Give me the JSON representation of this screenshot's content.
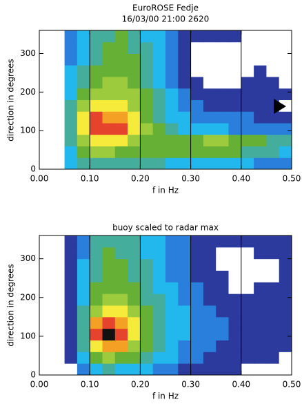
{
  "chart_data": [
    {
      "type": "contour",
      "title": "EuroROSE Fedje",
      "subtitle": "16/03/00 21:00 2620",
      "xlabel": "f in Hz",
      "ylabel": "direction in degrees",
      "xlim": [
        0,
        0.5
      ],
      "ylim": [
        0,
        360
      ],
      "xticks": [
        {
          "value": 0,
          "label": "0.00"
        },
        {
          "value": 0.1,
          "label": "0.10"
        },
        {
          "value": 0.2,
          "label": "0.20"
        },
        {
          "value": 0.3,
          "label": "0.30"
        },
        {
          "value": 0.4,
          "label": "0.40"
        },
        {
          "value": 0.5,
          "label": "0.50"
        }
      ],
      "yticks": [
        0,
        100,
        200,
        300
      ],
      "vlines": [
        0.1,
        0.2,
        0.3,
        0.4
      ],
      "colors": [
        "#ffffff",
        "#2b3a9c",
        "#2a7edc",
        "#22b8ee",
        "#44ad9c",
        "#66b035",
        "#9ccb3d",
        "#f6ea3b",
        "#f4a024",
        "#e5432b",
        "#111111"
      ],
      "x": [
        0.0625,
        0.0875,
        0.1125,
        0.1375,
        0.1625,
        0.1875,
        0.2125,
        0.2375,
        0.2625,
        0.2875,
        0.3125,
        0.3375,
        0.3625,
        0.3875,
        0.4125,
        0.4375,
        0.4625,
        0.4875
      ],
      "y": [
        15,
        45,
        75,
        105,
        135,
        165,
        195,
        225,
        255,
        285,
        315,
        345
      ],
      "z": [
        [
          3,
          4,
          4,
          4,
          4,
          4,
          4,
          4,
          3,
          3,
          3,
          3,
          3,
          3,
          3,
          2,
          2,
          2
        ],
        [
          3,
          5,
          6,
          6,
          5,
          5,
          5,
          5,
          5,
          5,
          5,
          5,
          5,
          5,
          4,
          4,
          4,
          3
        ],
        [
          4,
          6,
          7,
          7,
          7,
          6,
          5,
          5,
          5,
          5,
          5,
          6,
          6,
          5,
          5,
          5,
          4,
          4
        ],
        [
          4,
          7,
          9,
          9,
          9,
          7,
          6,
          5,
          4,
          3,
          3,
          3,
          3,
          2,
          2,
          2,
          2,
          2
        ],
        [
          4,
          7,
          9,
          8,
          8,
          7,
          5,
          4,
          3,
          3,
          2,
          2,
          2,
          2,
          2,
          1,
          1,
          1
        ],
        [
          4,
          6,
          7,
          7,
          7,
          6,
          5,
          4,
          3,
          2,
          2,
          1,
          1,
          1,
          1,
          1,
          1,
          0
        ],
        [
          3,
          5,
          6,
          6,
          6,
          6,
          5,
          4,
          3,
          2,
          1,
          1,
          1,
          1,
          1,
          1,
          1,
          1
        ],
        [
          3,
          4,
          5,
          6,
          6,
          5,
          4,
          3,
          2,
          1,
          1,
          0,
          0,
          0,
          1,
          1,
          1,
          0
        ],
        [
          3,
          4,
          5,
          5,
          5,
          5,
          4,
          3,
          2,
          1,
          0,
          0,
          0,
          0,
          0,
          1,
          0,
          0
        ],
        [
          2,
          3,
          4,
          5,
          5,
          5,
          4,
          3,
          2,
          1,
          0,
          0,
          0,
          0,
          0,
          0,
          0,
          0
        ],
        [
          2,
          3,
          4,
          5,
          5,
          4,
          4,
          3,
          2,
          1,
          0,
          0,
          0,
          0,
          0,
          0,
          0,
          0
        ],
        [
          2,
          3,
          4,
          4,
          5,
          4,
          3,
          3,
          2,
          1,
          1,
          1,
          1,
          1,
          0,
          0,
          0,
          0
        ]
      ]
    },
    {
      "type": "contour",
      "title": "buoy scaled to radar max",
      "xlabel": "f in Hz",
      "ylabel": "direction in degrees",
      "xlim": [
        0,
        0.5
      ],
      "ylim": [
        0,
        360
      ],
      "xticks": [
        {
          "value": 0,
          "label": "0.00"
        },
        {
          "value": 0.1,
          "label": "0.10"
        },
        {
          "value": 0.2,
          "label": "0.20"
        },
        {
          "value": 0.3,
          "label": "0.30"
        },
        {
          "value": 0.4,
          "label": "0.40"
        },
        {
          "value": 0.5,
          "label": "0.50"
        }
      ],
      "yticks": [
        0,
        100,
        200,
        300
      ],
      "vlines": [
        0.1,
        0.2,
        0.3,
        0.4
      ],
      "colors": [
        "#ffffff",
        "#2b3a9c",
        "#2a7edc",
        "#22b8ee",
        "#44ad9c",
        "#66b035",
        "#9ccb3d",
        "#f6ea3b",
        "#f4a024",
        "#e5432b",
        "#111111"
      ],
      "x": [
        0.0625,
        0.0875,
        0.1125,
        0.1375,
        0.1625,
        0.1875,
        0.2125,
        0.2375,
        0.2625,
        0.2875,
        0.3125,
        0.3375,
        0.3625,
        0.3875,
        0.4125,
        0.4375,
        0.4625,
        0.4875
      ],
      "y": [
        15,
        45,
        75,
        105,
        135,
        165,
        195,
        225,
        255,
        285,
        315,
        345
      ],
      "z": [
        [
          0,
          2,
          3,
          4,
          3,
          3,
          3,
          2,
          2,
          1,
          1,
          1,
          1,
          1,
          0,
          0,
          0,
          0
        ],
        [
          1,
          3,
          5,
          6,
          5,
          5,
          4,
          3,
          3,
          2,
          2,
          1,
          1,
          1,
          1,
          1,
          1,
          0
        ],
        [
          1,
          4,
          7,
          8,
          8,
          6,
          5,
          4,
          3,
          2,
          2,
          2,
          1,
          1,
          1,
          1,
          1,
          1
        ],
        [
          1,
          4,
          9,
          10,
          9,
          7,
          5,
          4,
          3,
          3,
          2,
          2,
          2,
          1,
          1,
          1,
          1,
          1
        ],
        [
          1,
          4,
          8,
          9,
          8,
          7,
          5,
          4,
          3,
          3,
          2,
          2,
          2,
          1,
          1,
          1,
          1,
          1
        ],
        [
          1,
          4,
          6,
          7,
          7,
          6,
          5,
          4,
          3,
          3,
          2,
          2,
          1,
          1,
          1,
          1,
          1,
          1
        ],
        [
          1,
          3,
          5,
          6,
          6,
          5,
          4,
          4,
          3,
          2,
          2,
          1,
          1,
          1,
          1,
          1,
          1,
          1
        ],
        [
          1,
          3,
          5,
          5,
          5,
          5,
          4,
          3,
          3,
          2,
          2,
          1,
          1,
          0,
          0,
          1,
          1,
          1
        ],
        [
          1,
          3,
          4,
          5,
          5,
          4,
          4,
          3,
          2,
          2,
          1,
          1,
          1,
          0,
          0,
          0,
          0,
          1
        ],
        [
          1,
          3,
          4,
          5,
          5,
          4,
          4,
          3,
          2,
          2,
          1,
          1,
          0,
          0,
          0,
          0,
          0,
          1
        ],
        [
          1,
          2,
          4,
          5,
          4,
          4,
          3,
          3,
          2,
          2,
          1,
          1,
          0,
          0,
          0,
          1,
          1,
          1
        ],
        [
          1,
          2,
          4,
          4,
          4,
          4,
          3,
          3,
          2,
          2,
          1,
          1,
          1,
          1,
          1,
          1,
          1,
          1
        ]
      ]
    }
  ]
}
